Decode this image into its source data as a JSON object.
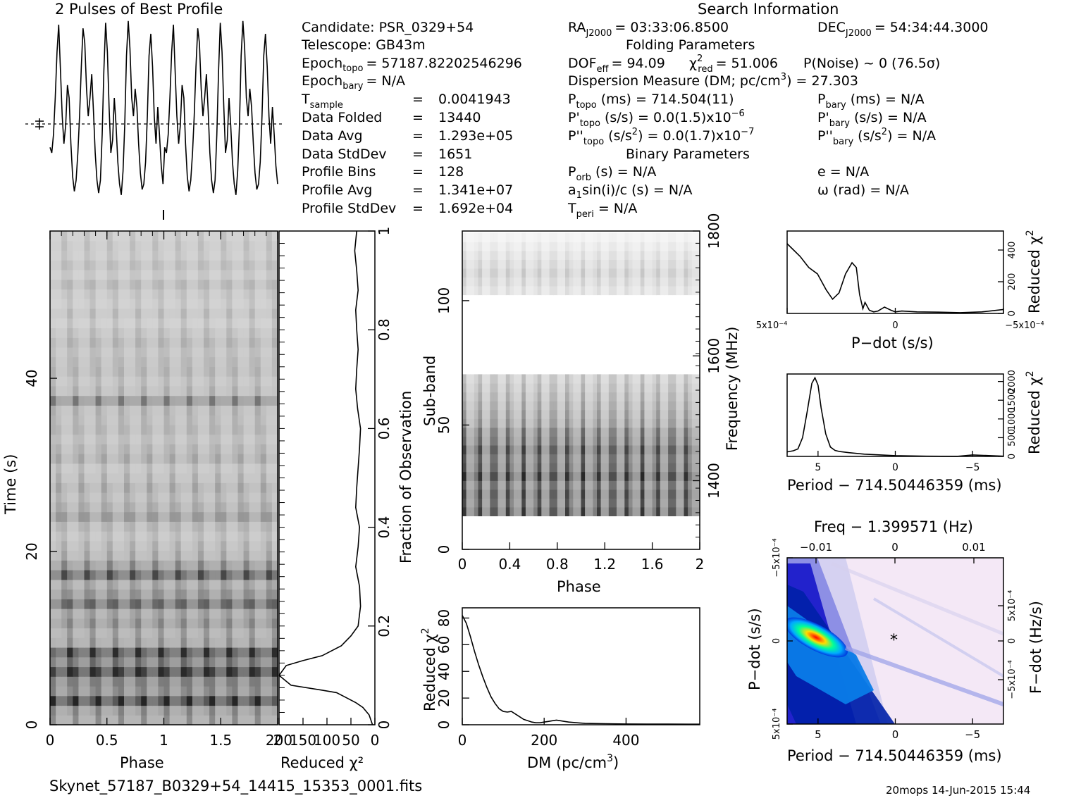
{
  "texts": {
    "pulse_title": "2 Pulses of Best Profile",
    "search_info_title": "Search Information",
    "folding_title": "Folding Parameters",
    "binary_title": "Binary Parameters",
    "filename": "Skynet_57187_B0329+54_14415_15353_0001.fits",
    "footer_stamp": "20mops 14-Jun-2015 15:44"
  },
  "info": {
    "candidate": "Candidate:  PSR_0329+54",
    "telescope": "Telescope:  GB43m",
    "epoch_topo_label": "Epoch",
    "epoch_topo_sub": "topo",
    "epoch_topo_value": "= 57187.82202546296",
    "epoch_bary_label": "Epoch",
    "epoch_bary_sub": "bary",
    "epoch_bary_value": "= N/A",
    "tsample_label": "T",
    "tsample_sub": "sample",
    "tsample_value": "0.0041943",
    "data_folded_label": "Data Folded",
    "data_folded_value": "13440",
    "data_avg_label": "Data Avg",
    "data_avg_value": "1.293e+05",
    "data_std_label": "Data StdDev",
    "data_std_value": "1651",
    "profile_bins_label": "Profile Bins",
    "profile_bins_value": "128",
    "profile_avg_label": "Profile Avg",
    "profile_avg_value": "1.341e+07",
    "profile_std_label": "Profile StdDev",
    "profile_std_value": "1.692e+04",
    "eq": "="
  },
  "search": {
    "ra_label": "RA",
    "ra_sub": "J2000",
    "ra_value": "= 03:33:06.8500",
    "dec_label": "DEC",
    "dec_sub": "J2000",
    "dec_value": "= 54:34:44.3000",
    "dof_label": "DOF",
    "dof_sub": "eff",
    "dof_value": "= 94.09",
    "chi_label": "χ",
    "chi_sup": "2",
    "chi_sub": "red",
    "chi_value": "= 51.006",
    "pnoise": "P(Noise) ~ 0   (76.5σ)",
    "dm_text": "Dispersion Measure (DM; pc/cm",
    "dm_sup": "3",
    "dm_value": ") = 27.303",
    "ptopo_label": "P",
    "ptopo_sub": "topo",
    "ptopo_value": "(ms) =  714.504(11)",
    "pbary_label": "P",
    "pbary_sub": "bary",
    "pbary_value": "(ms) = N/A",
    "pdtopo_label": "P'",
    "pdtopo_sub": "topo",
    "pdtopo_value": "(s/s) = 0.0(1.5)x10",
    "pdtopo_exp": "−6",
    "pdbary_label": "P'",
    "pdbary_sub": "bary",
    "pdbary_value": "(s/s) = N/A",
    "pddtopo_label": "P''",
    "pddtopo_sub": "topo",
    "pddtopo_value": "(s/s",
    "pddtopo_sup": "2",
    "pddtopo_value2": ") = 0.0(1.7)x10",
    "pddtopo_exp": "−7",
    "pddbary_label": "P''",
    "pddbary_sub": "bary",
    "pddbary_value": "(s/s",
    "pddbary_sup": "2",
    "pddbary_value2": ") = N/A",
    "porb_label": "P",
    "porb_sub": "orb",
    "porb_value": "(s) = N/A",
    "e_value": "e = N/A",
    "a1_a": "a",
    "a1_sub": "1",
    "a1_value": "sin(i)/c (s) = N/A",
    "omega_value": "ω (rad) = N/A",
    "tperi_label": "T",
    "tperi_sub": "peri",
    "tperi_value": "= N/A"
  },
  "colors": {
    "dm_colormap": [
      "#0000c8",
      "#0050ff",
      "#00b4ff",
      "#00ffb4",
      "#50ff00",
      "#ffff00",
      "#ff8c00",
      "#ff0000"
    ],
    "background_tint": "#f4e8f6"
  },
  "chart_data": [
    {
      "id": "pulse_profile",
      "type": "line",
      "title": "2 Pulses of Best Profile",
      "x_range": [
        0,
        2
      ],
      "values": [
        0.28,
        0.25,
        0.35,
        0.55,
        0.8,
        0.95,
        0.7,
        0.45,
        0.3,
        0.4,
        0.62,
        0.55,
        0.3,
        0.12,
        0.04,
        0.1,
        0.25,
        0.45,
        0.72,
        0.93,
        0.85,
        0.6,
        0.45,
        0.55,
        0.68,
        0.48,
        0.25,
        0.1,
        0.03,
        0.1,
        0.35,
        0.7,
        0.96,
        0.8,
        0.5,
        0.25,
        0.32,
        0.55,
        0.4,
        0.2,
        0.08,
        0.02,
        0.15,
        0.4,
        0.78,
        0.97,
        0.82,
        0.55,
        0.45,
        0.6,
        0.5,
        0.3,
        0.14,
        0.05,
        0.08,
        0.2,
        0.45,
        0.78,
        0.9,
        0.72,
        0.45,
        0.3,
        0.5,
        0.35,
        0.18,
        0.08,
        0.28,
        0.25,
        0.35,
        0.55,
        0.8,
        0.95,
        0.7,
        0.45,
        0.3,
        0.4,
        0.62,
        0.55,
        0.3,
        0.12,
        0.04,
        0.1,
        0.25,
        0.45,
        0.72,
        0.93,
        0.85,
        0.6,
        0.45,
        0.55,
        0.68,
        0.48,
        0.25,
        0.1,
        0.03,
        0.1,
        0.35,
        0.7,
        0.96,
        0.8,
        0.5,
        0.25,
        0.32,
        0.55,
        0.4,
        0.2,
        0.08,
        0.02,
        0.15,
        0.4,
        0.78,
        0.97,
        0.82,
        0.55,
        0.45,
        0.6,
        0.5,
        0.3,
        0.14,
        0.05,
        0.08,
        0.2,
        0.45,
        0.78,
        0.9,
        0.72,
        0.45,
        0.3,
        0.5,
        0.35,
        0.18,
        0.08
      ]
    },
    {
      "id": "time_phase",
      "type": "heatmap",
      "xlabel": "Phase",
      "ylabel": "Time (s)",
      "x_range": [
        0,
        2
      ],
      "y_range": [
        0,
        57
      ],
      "xticks": [
        "0",
        "0.5",
        "1",
        "1.5",
        "2"
      ],
      "yticks": [
        "0",
        "20",
        "40"
      ],
      "row_intensity": [
        0.45,
        0.5,
        0.95,
        0.55,
        0.6,
        0.98,
        0.65,
        0.9,
        0.45,
        0.4,
        0.5,
        0.42,
        0.72,
        0.5,
        0.4,
        0.78,
        0.5,
        0.35,
        0.3,
        0.25,
        0.3,
        0.45,
        0.35,
        0.3,
        0.35,
        0.3,
        0.25,
        0.35,
        0.3,
        0.25,
        0.3,
        0.28,
        0.3,
        0.55,
        0.3,
        0.25,
        0.3,
        0.28,
        0.25,
        0.3,
        0.25,
        0.2,
        0.25,
        0.2,
        0.22,
        0.28,
        0.2,
        0.25,
        0.2,
        0.22,
        0.2
      ]
    },
    {
      "id": "reduced_chi2_vs_fraction",
      "type": "line",
      "xlabel": "Reduced χ²",
      "ylabel": "Fraction of Observation",
      "x_range": [
        200,
        0
      ],
      "y_range": [
        0,
        1
      ],
      "xticks": [
        "200",
        "150",
        "100",
        "50",
        "0"
      ],
      "yticks": [
        "0",
        "0.2",
        "0.4",
        "0.6",
        "0.8",
        "1"
      ],
      "x": [
        5,
        12,
        25,
        40,
        60,
        80,
        110,
        175,
        200,
        185,
        150,
        110,
        70,
        50,
        35,
        30,
        32,
        40,
        35,
        32,
        40,
        38,
        35,
        32,
        30,
        36,
        40,
        38,
        35,
        38,
        40,
        35,
        38,
        42,
        40,
        38
      ],
      "y": [
        0,
        0.02,
        0.035,
        0.045,
        0.055,
        0.065,
        0.07,
        0.08,
        0.1,
        0.12,
        0.13,
        0.14,
        0.16,
        0.18,
        0.2,
        0.24,
        0.28,
        0.32,
        0.36,
        0.4,
        0.44,
        0.48,
        0.52,
        0.56,
        0.6,
        0.64,
        0.68,
        0.72,
        0.76,
        0.8,
        0.84,
        0.88,
        0.92,
        0.96,
        0.98,
        1.0
      ]
    },
    {
      "id": "subband_phase",
      "type": "heatmap",
      "xlabel": "Phase",
      "ylabel": "Sub-band",
      "y2label": "Frequency (MHz)",
      "x_range": [
        0,
        2
      ],
      "y_range": [
        0,
        128
      ],
      "xticks": [
        "0",
        "0.4",
        "0.8",
        "1.2",
        "1.6",
        "2"
      ],
      "yticks": [
        "0",
        "50",
        "100"
      ],
      "y2ticks": [
        "1400",
        "1600",
        "1800"
      ],
      "band_intensity": [
        0.0,
        0.0,
        0.0,
        0.95,
        0.85,
        0.9,
        0.8,
        1.0,
        0.85,
        0.8,
        0.9,
        0.75,
        0.7,
        0.55,
        0.5,
        0.45,
        0.4,
        0.35,
        0.3,
        0.0,
        0.0,
        0.0,
        0.0,
        0.0,
        0.0,
        0.0,
        0.0,
        0.0,
        0.15,
        0.2,
        0.25,
        0.2,
        0.15,
        0.1,
        0.05,
        0.0
      ]
    },
    {
      "id": "dm_curve",
      "type": "line",
      "xlabel": "DM (pc/cm³)",
      "ylabel": "Reduced χ²",
      "x_range": [
        0,
        580
      ],
      "y_range": [
        0,
        85
      ],
      "xticks": [
        "0",
        "200",
        "400"
      ],
      "yticks": [
        "0",
        "20",
        "40",
        "60",
        "80"
      ],
      "x": [
        0,
        10,
        20,
        30,
        40,
        50,
        60,
        70,
        80,
        90,
        100,
        110,
        120,
        130,
        140,
        150,
        160,
        170,
        180,
        190,
        200,
        210,
        220,
        230,
        240,
        250,
        260,
        280,
        300,
        350,
        400,
        450,
        500,
        550,
        580
      ],
      "y": [
        82,
        76,
        66,
        55,
        45,
        36,
        28,
        21,
        16,
        12,
        10,
        9.5,
        10,
        8,
        6,
        4,
        3,
        2,
        1.5,
        1.5,
        2,
        2.5,
        3,
        3.5,
        3,
        2.5,
        2,
        1.5,
        1,
        0.8,
        0.6,
        0.5,
        0.5,
        0.4,
        0.4
      ]
    },
    {
      "id": "pdot_curve",
      "type": "line",
      "xlabel": "P−dot (s/s)",
      "ylabel": "Reduced χ²",
      "x_range": [
        0.0005,
        -0.0005
      ],
      "y_range": [
        0,
        520
      ],
      "xticks": [
        "5x10⁻⁴",
        "0",
        "−5x10⁻⁴"
      ],
      "yticks": [
        "0",
        "200",
        "400"
      ],
      "x": [
        0.0005,
        0.00047,
        0.00044,
        0.0004,
        0.00036,
        0.00032,
        0.00029,
        0.00026,
        0.00023,
        0.0002,
        0.00018,
        0.000165,
        0.00015,
        0.00014,
        0.00012,
        0.0001,
        8e-05,
        5e-05,
        2e-05,
        0,
        -3e-05,
        -0.0001,
        -0.0002,
        -0.0003,
        -0.0004,
        -0.0005
      ],
      "y": [
        440,
        400,
        360,
        290,
        250,
        150,
        90,
        130,
        250,
        320,
        290,
        120,
        30,
        70,
        20,
        10,
        15,
        40,
        20,
        10,
        15,
        10,
        8,
        5,
        10,
        25
      ]
    },
    {
      "id": "period_curve",
      "type": "line",
      "xlabel": "Period − 714.50446359 (ms)",
      "ylabel": "Reduced χ²",
      "x_range": [
        7,
        -7
      ],
      "y_range": [
        0,
        2200
      ],
      "xticks": [
        "5",
        "0",
        "−5"
      ],
      "yticks": [
        "0",
        "500",
        "1000",
        "1500",
        "2000"
      ],
      "x": [
        7,
        6.6,
        6.3,
        6,
        5.7,
        5.4,
        5.2,
        5,
        4.8,
        4.5,
        4.2,
        3.9,
        3.6,
        3,
        2,
        0,
        -2,
        -4,
        -5,
        -7
      ],
      "y": [
        120,
        150,
        200,
        500,
        1200,
        1950,
        2100,
        1900,
        1300,
        600,
        250,
        160,
        130,
        100,
        60,
        20,
        5,
        2,
        40,
        5
      ]
    },
    {
      "id": "p_pdot_plane",
      "type": "heatmap",
      "title": "Freq − 1.399571 (Hz)",
      "xlabel": "Period − 714.50446359 (ms)",
      "ylabel": "P−dot (s/s)",
      "y2label": "F−dot (Hz/s)",
      "x_range": [
        7,
        -7
      ],
      "xticks": [
        "5",
        "0",
        "−5"
      ],
      "x2ticks": [
        "−0.01",
        "0",
        "0.01"
      ],
      "yticks": [
        "−5x10⁻⁴",
        "0",
        "5x10⁻⁴"
      ],
      "y2ticks": [
        "5x10⁻⁴",
        "0",
        "−5x10⁻⁴"
      ],
      "marker": "*"
    }
  ]
}
